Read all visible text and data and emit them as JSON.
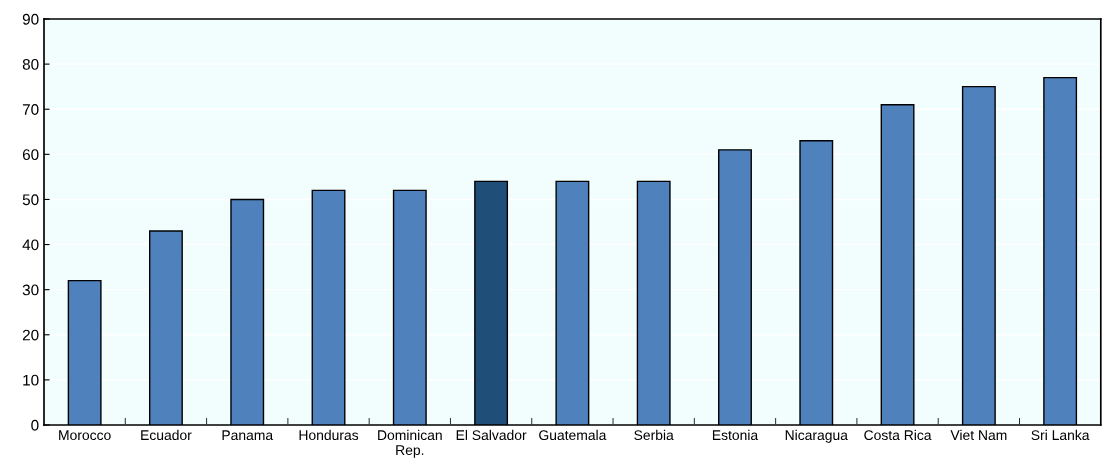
{
  "chart_data": {
    "type": "bar",
    "categories": [
      "Morocco",
      "Ecuador",
      "Panama",
      "Honduras",
      "Dominican\nRep.",
      "El Salvador",
      "Guatemala",
      "Serbia",
      "Estonia",
      "Nicaragua",
      "Costa Rica",
      "Viet Nam",
      "Sri Lanka"
    ],
    "values": [
      32,
      43,
      50,
      52,
      52,
      54,
      54,
      54,
      61,
      63,
      71,
      75,
      77
    ],
    "colors": [
      "#4f81bd",
      "#4f81bd",
      "#4f81bd",
      "#4f81bd",
      "#4f81bd",
      "#1f4e79",
      "#4f81bd",
      "#4f81bd",
      "#4f81bd",
      "#4f81bd",
      "#4f81bd",
      "#4f81bd",
      "#4f81bd"
    ],
    "ylim": [
      0,
      90
    ],
    "yticks": [
      0,
      10,
      20,
      30,
      40,
      50,
      60,
      70,
      80,
      90
    ],
    "grid": "y"
  }
}
